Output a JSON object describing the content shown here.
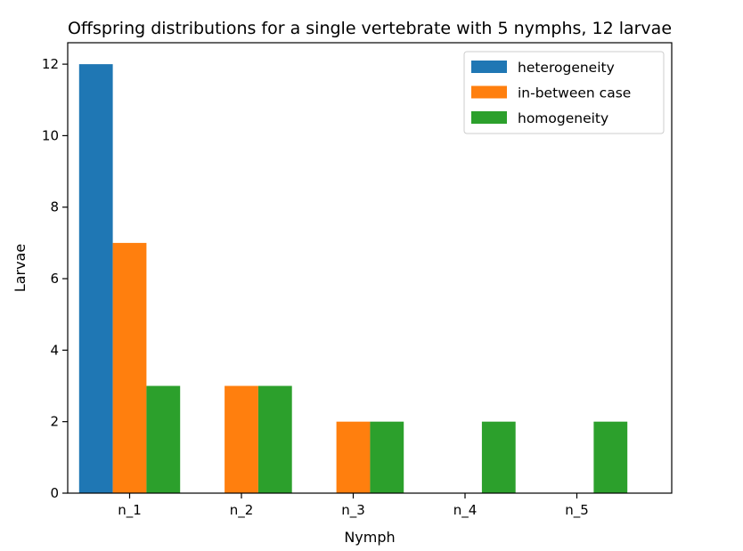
{
  "chart_data": {
    "type": "bar",
    "title": "Offspring distributions for a single vertebrate with 5 nymphs, 12 larvae",
    "xlabel": "Nymph",
    "ylabel": "Larvae",
    "categories": [
      "n_1",
      "n_2",
      "n_3",
      "n_4",
      "n_5"
    ],
    "series": [
      {
        "name": "heterogeneity",
        "values": [
          12,
          0,
          0,
          0,
          0
        ],
        "color": "#1f77b4"
      },
      {
        "name": "in-between case",
        "values": [
          7,
          3,
          2,
          0,
          0
        ],
        "color": "#ff7f0e"
      },
      {
        "name": "homogeneity",
        "values": [
          3,
          3,
          2,
          2,
          2
        ],
        "color": "#2ca02c"
      }
    ],
    "ylim": [
      0,
      12.6
    ],
    "yticks": [
      0,
      2,
      4,
      6,
      8,
      10,
      12
    ],
    "grid": false,
    "legend_position": "top-right"
  }
}
